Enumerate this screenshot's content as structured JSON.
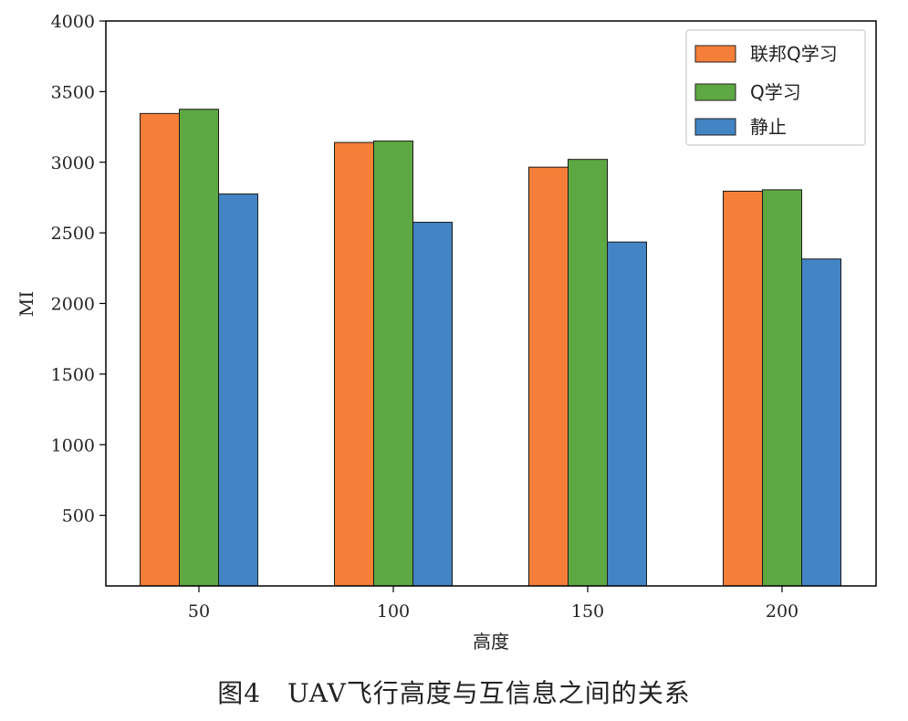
{
  "chart_data": {
    "type": "bar",
    "title": "",
    "xlabel": "高度",
    "ylabel": "MI",
    "categories": [
      "50",
      "100",
      "150",
      "200"
    ],
    "ylim": [
      0,
      4000
    ],
    "yticks": [
      500,
      1000,
      1500,
      2000,
      2500,
      3000,
      3500,
      4000
    ],
    "legend_position": "top-right",
    "series": [
      {
        "name": "联邦Q学习",
        "color": "#f57f38",
        "values": [
          3345,
          3140,
          2965,
          2795
        ]
      },
      {
        "name": "Q学习",
        "color": "#5ea844",
        "values": [
          3375,
          3150,
          3020,
          2805
        ]
      },
      {
        "name": "静止",
        "color": "#4384c4",
        "values": [
          2775,
          2575,
          2435,
          2315
        ]
      }
    ]
  },
  "caption": "图4　UAV飞行高度与互信息之间的关系"
}
